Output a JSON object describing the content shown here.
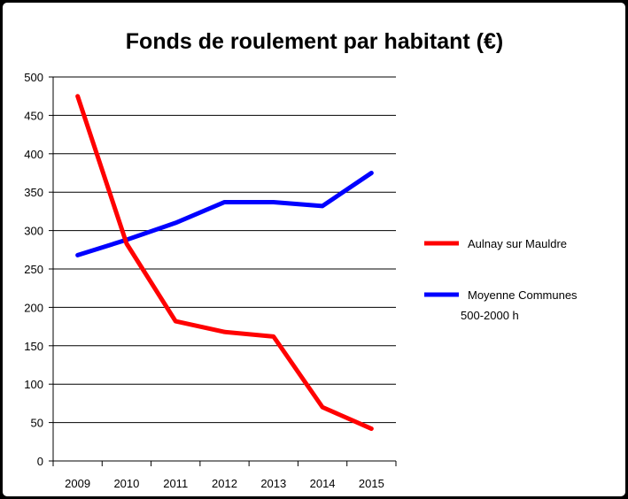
{
  "chart_data": {
    "type": "line",
    "title": "Fonds de roulement par habitant (€)",
    "xlabel": "",
    "ylabel": "",
    "categories": [
      "2009",
      "2010",
      "2011",
      "2012",
      "2013",
      "2014",
      "2015"
    ],
    "ylim": [
      0,
      500
    ],
    "yticks": [
      "0",
      "50",
      "100",
      "150",
      "200",
      "250",
      "300",
      "350",
      "400",
      "450",
      "500"
    ],
    "grid": true,
    "legend_position": "right",
    "series": [
      {
        "name": "Aulnay sur Mauldre",
        "color": "#ff0000",
        "values": [
          475,
          283,
          182,
          168,
          162,
          70,
          42
        ]
      },
      {
        "name_lines": [
          "Moyenne Communes",
          "500-2000 h"
        ],
        "color": "#0000ff",
        "values": [
          268,
          288,
          310,
          337,
          337,
          332,
          375
        ]
      }
    ]
  }
}
